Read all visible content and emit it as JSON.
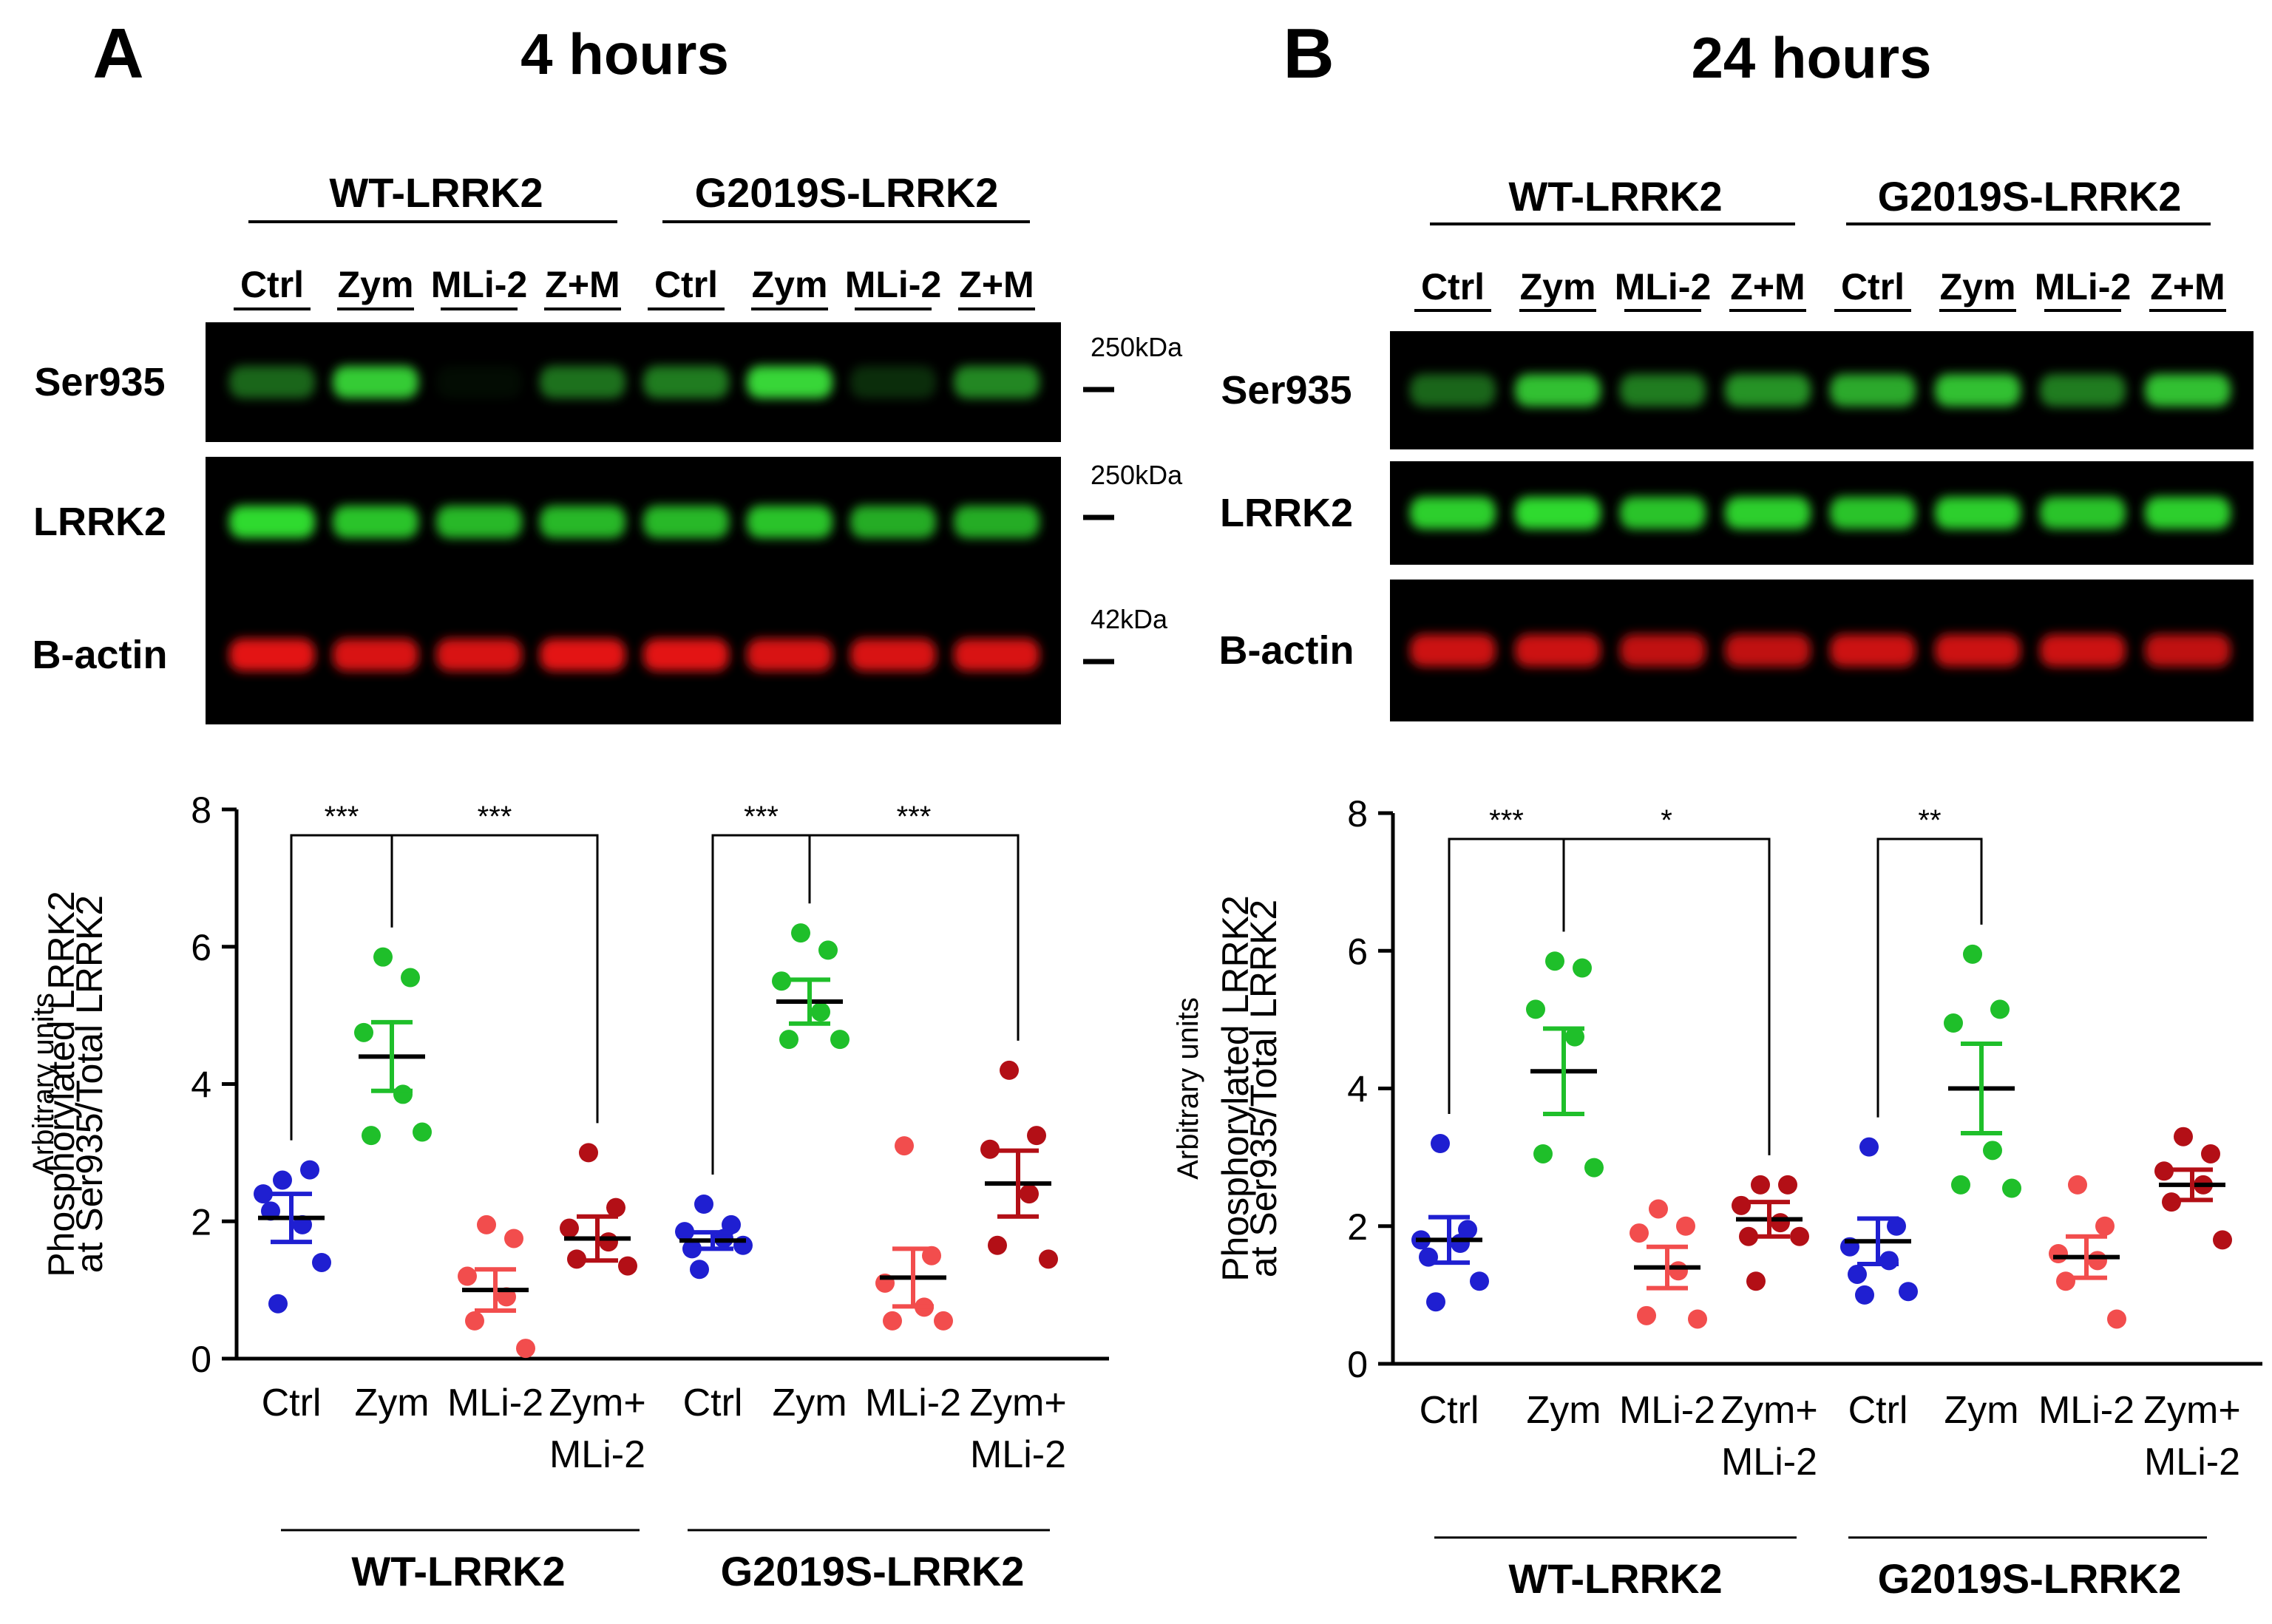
{
  "panels": [
    {
      "letter": "A",
      "title": "4 hours",
      "blot": {
        "groups": [
          "WT-LRRK2",
          "G2019S-LRRK2"
        ],
        "lanes": [
          "Ctrl",
          "Zym",
          "MLi-2",
          "Z+M",
          "Ctrl",
          "Zym",
          "MLi-2",
          "Z+M"
        ],
        "rows": [
          {
            "name": "Ser935",
            "color": "#3be23b",
            "marker": "250kDa",
            "intensity": [
              0.45,
              0.9,
              0.05,
              0.5,
              0.55,
              0.95,
              0.2,
              0.6
            ]
          },
          {
            "name": "LRRK2",
            "color": "#32e632",
            "marker": "250kDa",
            "intensity": [
              0.95,
              0.85,
              0.8,
              0.8,
              0.8,
              0.85,
              0.75,
              0.75
            ]
          },
          {
            "name": "B-actin",
            "color": "#f01818",
            "marker": "42kDa",
            "intensity": [
              0.95,
              0.9,
              0.9,
              0.95,
              0.95,
              0.9,
              0.9,
              0.9
            ]
          }
        ]
      },
      "chart_data": {
        "type": "scatter",
        "ylabel": [
          "Arbitrary units",
          "Phosphorylated LRRK2",
          "at Ser935/Total LRRK2"
        ],
        "yticks": [
          0,
          2,
          4,
          6,
          8
        ],
        "ylim": [
          0,
          8
        ],
        "categories": [
          "Ctrl",
          "Zym",
          "MLi-2",
          "Zym+\nMLi-2",
          "Ctrl",
          "Zym",
          "MLi-2",
          "Zym+\nMLi-2"
        ],
        "groups": [
          "WT-LRRK2",
          "G2019S-LRRK2"
        ],
        "colors": [
          "#1f1fd1",
          "#1fbf2a",
          "#f24d4d",
          "#b30f16",
          "#1f1fd1",
          "#1fbf2a",
          "#f24d4d",
          "#b30f16"
        ],
        "series": [
          {
            "mean": 2.05,
            "sem": 0.35,
            "points": [
              2.6,
              2.75,
              2.4,
              1.95,
              2.15,
              1.4,
              0.8
            ]
          },
          {
            "mean": 4.4,
            "sem": 0.5,
            "points": [
              5.85,
              5.55,
              4.75,
              3.85,
              3.25,
              3.3
            ]
          },
          {
            "mean": 1.0,
            "sem": 0.3,
            "points": [
              1.95,
              1.75,
              1.2,
              0.9,
              0.55,
              0.15
            ]
          },
          {
            "mean": 1.75,
            "sem": 0.32,
            "points": [
              3.0,
              2.2,
              1.9,
              1.7,
              1.45,
              1.35
            ]
          },
          {
            "mean": 1.72,
            "sem": 0.12,
            "points": [
              2.25,
              1.95,
              1.85,
              1.75,
              1.6,
              1.65,
              1.3
            ]
          },
          {
            "mean": 5.2,
            "sem": 0.32,
            "points": [
              6.2,
              5.95,
              5.5,
              5.05,
              4.65,
              4.65
            ]
          },
          {
            "mean": 1.18,
            "sem": 0.42,
            "points": [
              3.1,
              1.5,
              1.1,
              0.75,
              0.55,
              0.55
            ]
          },
          {
            "mean": 2.55,
            "sem": 0.48,
            "points": [
              4.2,
              3.25,
              3.05,
              2.4,
              1.65,
              1.45
            ]
          }
        ],
        "brackets": [
          {
            "from": 0,
            "to": 1,
            "label": "***"
          },
          {
            "from": 1,
            "to": 3,
            "label": "***"
          },
          {
            "from": 4,
            "to": 5,
            "label": "***"
          },
          {
            "from": 5,
            "to": 7,
            "label": "***"
          }
        ]
      }
    },
    {
      "letter": "B",
      "title": "24 hours",
      "blot": {
        "groups": [
          "WT-LRRK2",
          "G2019S-LRRK2"
        ],
        "lanes": [
          "Ctrl",
          "Zym",
          "MLi-2",
          "Z+M",
          "Ctrl",
          "Zym",
          "MLi-2",
          "Z+M"
        ],
        "rows": [
          {
            "name": "Ser935",
            "color": "#3be23b",
            "marker": "",
            "intensity": [
              0.45,
              0.85,
              0.55,
              0.65,
              0.75,
              0.85,
              0.55,
              0.85
            ]
          },
          {
            "name": "LRRK2",
            "color": "#32e632",
            "marker": "",
            "intensity": [
              0.9,
              0.95,
              0.85,
              0.9,
              0.85,
              0.9,
              0.85,
              0.9
            ]
          },
          {
            "name": "B-actin",
            "color": "#f01818",
            "marker": "",
            "intensity": [
              0.85,
              0.85,
              0.8,
              0.8,
              0.85,
              0.85,
              0.85,
              0.8
            ]
          }
        ]
      },
      "chart_data": {
        "type": "scatter",
        "ylabel": [
          "Arbitrary units",
          "Phosphorylated LRRK2",
          "at Ser935/Total LRRK2"
        ],
        "yticks": [
          0,
          2,
          4,
          6,
          8
        ],
        "ylim": [
          0,
          8
        ],
        "categories": [
          "Ctrl",
          "Zym",
          "MLi-2",
          "Zym+\nMLi-2",
          "Ctrl",
          "Zym",
          "MLi-2",
          "Zym+\nMLi-2"
        ],
        "groups": [
          "WT-LRRK2",
          "G2019S-LRRK2"
        ],
        "colors": [
          "#1f1fd1",
          "#1fbf2a",
          "#f24d4d",
          "#b30f16",
          "#1f1fd1",
          "#1fbf2a",
          "#f24d4d",
          "#b30f16"
        ],
        "series": [
          {
            "mean": 1.8,
            "sem": 0.33,
            "points": [
              3.2,
              1.95,
              1.8,
              1.75,
              1.55,
              1.2,
              0.9
            ]
          },
          {
            "mean": 4.25,
            "sem": 0.62,
            "points": [
              5.85,
              5.75,
              5.15,
              4.75,
              3.05,
              2.85
            ]
          },
          {
            "mean": 1.4,
            "sem": 0.3,
            "points": [
              2.25,
              2.0,
              1.9,
              1.35,
              0.7,
              0.65
            ]
          },
          {
            "mean": 2.1,
            "sem": 0.25,
            "points": [
              2.6,
              2.6,
              2.3,
              2.05,
              1.85,
              1.85,
              1.2
            ]
          },
          {
            "mean": 1.78,
            "sem": 0.33,
            "points": [
              3.15,
              2.0,
              1.7,
              1.5,
              1.3,
              1.05,
              1.0
            ]
          },
          {
            "mean": 4.0,
            "sem": 0.65,
            "points": [
              5.95,
              5.15,
              4.95,
              3.1,
              2.6,
              2.55
            ]
          },
          {
            "mean": 1.55,
            "sem": 0.3,
            "points": [
              2.6,
              2.0,
              1.6,
              1.5,
              1.2,
              0.65
            ]
          },
          {
            "mean": 2.6,
            "sem": 0.22,
            "points": [
              3.3,
              3.05,
              2.8,
              2.6,
              2.35,
              1.8
            ]
          }
        ],
        "brackets": [
          {
            "from": 0,
            "to": 1,
            "label": "***"
          },
          {
            "from": 1,
            "to": 3,
            "label": "*"
          },
          {
            "from": 4,
            "to": 5,
            "label": "**"
          }
        ]
      }
    }
  ]
}
